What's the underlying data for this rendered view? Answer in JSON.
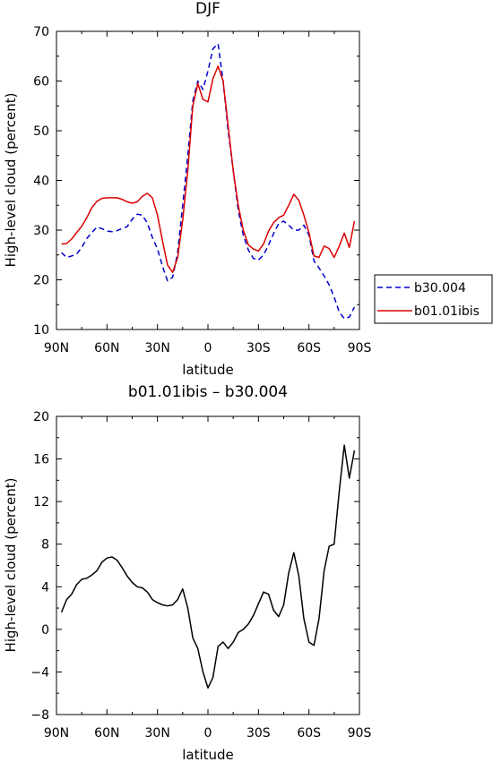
{
  "chart_data": [
    {
      "type": "line",
      "title": "DJF",
      "xlabel": "latitude",
      "ylabel": "High-level cloud (percent)",
      "xlim": [
        -90,
        90
      ],
      "ylim": [
        10,
        70
      ],
      "x_ticks": [
        -90,
        -60,
        -30,
        0,
        30,
        60,
        90
      ],
      "x_tick_labels": [
        "90N",
        "60N",
        "30N",
        "0",
        "30S",
        "60S",
        "90S"
      ],
      "y_ticks": [
        10,
        20,
        30,
        40,
        50,
        60,
        70
      ],
      "grid": false,
      "legend": {
        "placement": "right-outside"
      },
      "series": [
        {
          "name": "b30.004",
          "color": "#0000cc",
          "style": "dashed",
          "x": [
            -87,
            -84,
            -81,
            -78,
            -75,
            -72,
            -69,
            -66,
            -63,
            -60,
            -57,
            -54,
            -51,
            -48,
            -45,
            -42,
            -39,
            -36,
            -33,
            -30,
            -27,
            -24,
            -21,
            -18,
            -15,
            -12,
            -9,
            -6,
            -3,
            0,
            3,
            6,
            9,
            12,
            15,
            18,
            21,
            24,
            27,
            30,
            33,
            36,
            39,
            42,
            45,
            48,
            51,
            54,
            57,
            60,
            63,
            66,
            69,
            72,
            75,
            78,
            81,
            84,
            87
          ],
          "values": [
            25.5,
            24.5,
            24.8,
            25.2,
            26.5,
            28.3,
            29.5,
            30.6,
            30.3,
            29.8,
            29.7,
            29.9,
            30.3,
            30.7,
            32.2,
            33.2,
            33.0,
            31.4,
            28.5,
            26.2,
            22.7,
            19.8,
            20.5,
            25.5,
            35.0,
            45.0,
            56.0,
            60.0,
            58.3,
            62.0,
            66.5,
            67.5,
            60.0,
            50.0,
            42.0,
            34.0,
            29.0,
            26.0,
            24.3,
            24.0,
            25.0,
            27.0,
            29.3,
            31.3,
            31.8,
            31.0,
            30.0,
            30.0,
            31.0,
            29.0,
            23.8,
            22.4,
            20.8,
            19.0,
            16.5,
            13.5,
            12.2,
            12.5,
            14.5
          ]
        },
        {
          "name": "b01.01ibis",
          "color": "#dd0000",
          "style": "solid",
          "x": [
            -87,
            -84,
            -81,
            -78,
            -75,
            -72,
            -69,
            -66,
            -63,
            -60,
            -57,
            -54,
            -51,
            -48,
            -45,
            -42,
            -39,
            -36,
            -33,
            -30,
            -27,
            -24,
            -21,
            -18,
            -15,
            -12,
            -9,
            -6,
            -3,
            0,
            3,
            6,
            9,
            12,
            15,
            18,
            21,
            24,
            27,
            30,
            33,
            36,
            39,
            42,
            45,
            48,
            51,
            54,
            57,
            60,
            63,
            66,
            69,
            72,
            75,
            78,
            81,
            84,
            87
          ],
          "values": [
            27.2,
            27.3,
            28.2,
            29.5,
            30.8,
            32.5,
            34.5,
            35.8,
            36.4,
            36.5,
            36.5,
            36.5,
            36.2,
            35.7,
            35.4,
            35.7,
            36.8,
            37.4,
            36.5,
            33.0,
            27.8,
            23.0,
            21.5,
            24.5,
            32.0,
            42.0,
            55.0,
            59.5,
            56.3,
            55.8,
            60.5,
            63.0,
            60.0,
            51.0,
            42.0,
            35.0,
            30.0,
            27.0,
            26.2,
            25.8,
            27.2,
            29.8,
            31.5,
            32.5,
            33.0,
            35.0,
            37.2,
            36.0,
            33.0,
            29.5,
            24.8,
            24.5,
            26.8,
            26.3,
            24.5,
            26.8,
            29.4,
            26.5,
            31.8
          ]
        }
      ]
    },
    {
      "type": "line",
      "title": "b01.01ibis – b30.004",
      "xlabel": "latitude",
      "ylabel": "High-level cloud (percent)",
      "xlim": [
        -90,
        90
      ],
      "ylim": [
        -8,
        20
      ],
      "x_ticks": [
        -90,
        -60,
        -30,
        0,
        30,
        60,
        90
      ],
      "x_tick_labels": [
        "90N",
        "60N",
        "30N",
        "0",
        "30S",
        "60S",
        "90S"
      ],
      "y_ticks": [
        -8,
        -4,
        0,
        4,
        8,
        12,
        16,
        20
      ],
      "grid": false,
      "series": [
        {
          "color": "#000000",
          "style": "solid",
          "x": [
            -87,
            -84,
            -81,
            -78,
            -75,
            -72,
            -69,
            -66,
            -63,
            -60,
            -57,
            -54,
            -51,
            -48,
            -45,
            -42,
            -39,
            -36,
            -33,
            -30,
            -27,
            -24,
            -21,
            -18,
            -15,
            -12,
            -9,
            -6,
            -3,
            0,
            3,
            6,
            9,
            12,
            15,
            18,
            21,
            24,
            27,
            30,
            33,
            36,
            39,
            42,
            45,
            48,
            51,
            54,
            57,
            60,
            63,
            66,
            69,
            72,
            75,
            78,
            81,
            84,
            87
          ],
          "values": [
            1.6,
            2.8,
            3.3,
            4.2,
            4.7,
            4.8,
            5.1,
            5.5,
            6.3,
            6.7,
            6.8,
            6.5,
            5.8,
            5.0,
            4.4,
            4.0,
            3.9,
            3.5,
            2.8,
            2.5,
            2.3,
            2.2,
            2.3,
            2.8,
            3.8,
            2.0,
            -0.8,
            -1.8,
            -4.0,
            -5.5,
            -4.5,
            -1.6,
            -1.2,
            -1.8,
            -1.2,
            -0.3,
            0.0,
            0.5,
            1.3,
            2.4,
            3.5,
            3.3,
            1.8,
            1.2,
            2.3,
            5.3,
            7.2,
            5.0,
            1.0,
            -1.2,
            -1.5,
            1.0,
            5.5,
            7.8,
            8.0,
            13.0,
            17.3,
            14.2,
            16.8
          ]
        }
      ]
    }
  ]
}
